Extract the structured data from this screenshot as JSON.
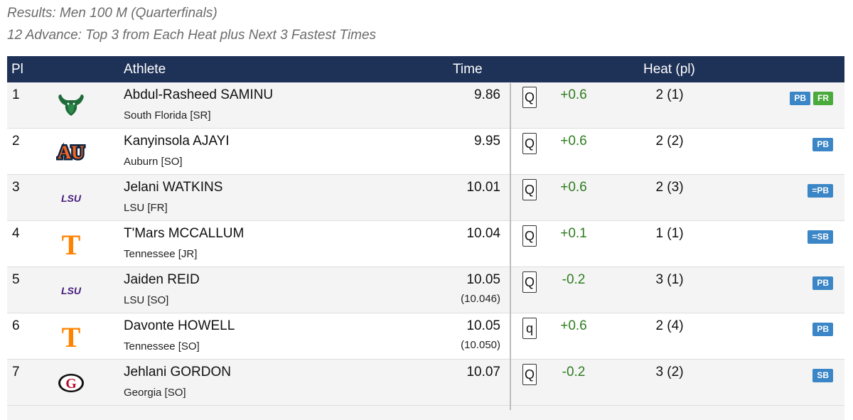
{
  "header": {
    "title": "Results: Men 100 M (Quarterfinals)",
    "subtitle": "12 Advance: Top 3 from Each Heat plus Next 3 Fastest Times"
  },
  "columns": {
    "pl": "Pl",
    "athlete": "Athlete",
    "time": "Time",
    "heat": "Heat (pl)"
  },
  "rows": [
    {
      "pl": "1",
      "name": "Abdul-Rasheed SAMINU",
      "team": "South Florida [SR]",
      "time": "9.86",
      "time_precise": "",
      "qual": "Q",
      "wind": "+0.6",
      "heat": "2 (1)",
      "badges": [
        "PB",
        "FR"
      ],
      "logo": "usf-bull-logo"
    },
    {
      "pl": "2",
      "name": "Kanyinsola AJAYI",
      "team": "Auburn [SO]",
      "time": "9.95",
      "time_precise": "",
      "qual": "Q",
      "wind": "+0.6",
      "heat": "2 (2)",
      "badges": [
        "PB"
      ],
      "logo": "auburn-logo"
    },
    {
      "pl": "3",
      "name": "Jelani WATKINS",
      "team": "LSU [FR]",
      "time": "10.01",
      "time_precise": "",
      "qual": "Q",
      "wind": "+0.6",
      "heat": "2 (3)",
      "badges": [
        "=PB"
      ],
      "logo": "lsu-logo"
    },
    {
      "pl": "4",
      "name": "T'Mars MCCALLUM",
      "team": "Tennessee [JR]",
      "time": "10.04",
      "time_precise": "",
      "qual": "Q",
      "wind": "+0.1",
      "heat": "1 (1)",
      "badges": [
        "=SB"
      ],
      "logo": "tennessee-logo"
    },
    {
      "pl": "5",
      "name": "Jaiden REID",
      "team": "LSU [SO]",
      "time": "10.05",
      "time_precise": "(10.046)",
      "qual": "Q",
      "wind": "-0.2",
      "heat": "3 (1)",
      "badges": [
        "PB"
      ],
      "logo": "lsu-logo"
    },
    {
      "pl": "6",
      "name": "Davonte HOWELL",
      "team": "Tennessee [SO]",
      "time": "10.05",
      "time_precise": "(10.050)",
      "qual": "q",
      "wind": "+0.6",
      "heat": "2 (4)",
      "badges": [
        "PB"
      ],
      "logo": "tennessee-logo"
    },
    {
      "pl": "7",
      "name": "Jehlani GORDON",
      "team": "Georgia [SO]",
      "time": "10.07",
      "time_precise": "",
      "qual": "Q",
      "wind": "-0.2",
      "heat": "3 (2)",
      "badges": [
        "SB"
      ],
      "logo": "georgia-logo"
    }
  ],
  "logo_text": {
    "auburn": "AU",
    "lsu": "LSU",
    "tennessee": "T",
    "georgia": "G"
  },
  "colors": {
    "header_bg": "#1e3157",
    "badge_blue": "#3b86c6",
    "badge_green": "#4aaa3c",
    "wind_green": "#2e7d1f"
  }
}
